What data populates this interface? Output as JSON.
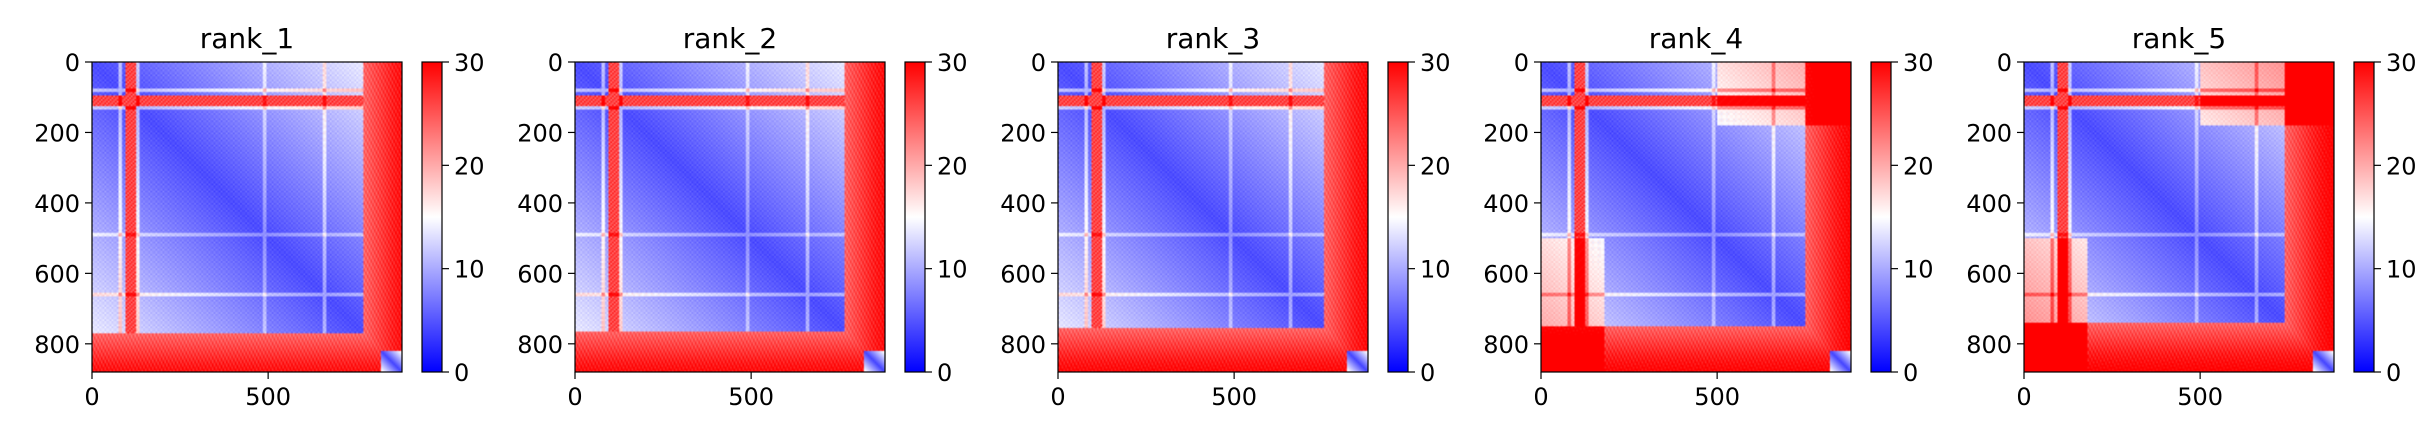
{
  "colormap": {
    "low": "#0000ff",
    "mid": "#ffffff",
    "high": "#ff0000"
  },
  "chart_data": [
    {
      "type": "heatmap",
      "title": "rank_1",
      "xlabel": "",
      "ylabel": "",
      "x_ticks": [
        0,
        500
      ],
      "y_ticks": [
        0,
        200,
        400,
        600,
        800
      ],
      "x_range": [
        0,
        880
      ],
      "y_range": [
        0,
        880
      ],
      "colorbar": {
        "range": [
          0,
          30
        ],
        "ticks": [
          0,
          10,
          20,
          30
        ]
      }
    },
    {
      "type": "heatmap",
      "title": "rank_2",
      "xlabel": "",
      "ylabel": "",
      "x_ticks": [
        0,
        500
      ],
      "y_ticks": [
        0,
        200,
        400,
        600,
        800
      ],
      "x_range": [
        0,
        880
      ],
      "y_range": [
        0,
        880
      ],
      "colorbar": {
        "range": [
          0,
          30
        ],
        "ticks": [
          0,
          10,
          20,
          30
        ]
      }
    },
    {
      "type": "heatmap",
      "title": "rank_3",
      "xlabel": "",
      "ylabel": "",
      "x_ticks": [
        0,
        500
      ],
      "y_ticks": [
        0,
        200,
        400,
        600,
        800
      ],
      "x_range": [
        0,
        880
      ],
      "y_range": [
        0,
        880
      ],
      "colorbar": {
        "range": [
          0,
          30
        ],
        "ticks": [
          0,
          10,
          20,
          30
        ]
      }
    },
    {
      "type": "heatmap",
      "title": "rank_4",
      "xlabel": "",
      "ylabel": "",
      "x_ticks": [
        0,
        500
      ],
      "y_ticks": [
        0,
        200,
        400,
        600,
        800
      ],
      "x_range": [
        0,
        880
      ],
      "y_range": [
        0,
        880
      ],
      "colorbar": {
        "range": [
          0,
          30
        ],
        "ticks": [
          0,
          10,
          20,
          30
        ]
      }
    },
    {
      "type": "heatmap",
      "title": "rank_5",
      "xlabel": "",
      "ylabel": "",
      "x_ticks": [
        0,
        500
      ],
      "y_ticks": [
        0,
        200,
        400,
        600,
        800
      ],
      "x_range": [
        0,
        880
      ],
      "y_range": [
        0,
        880
      ],
      "colorbar": {
        "range": [
          0,
          30
        ],
        "ticks": [
          0,
          10,
          20,
          30
        ]
      }
    }
  ]
}
